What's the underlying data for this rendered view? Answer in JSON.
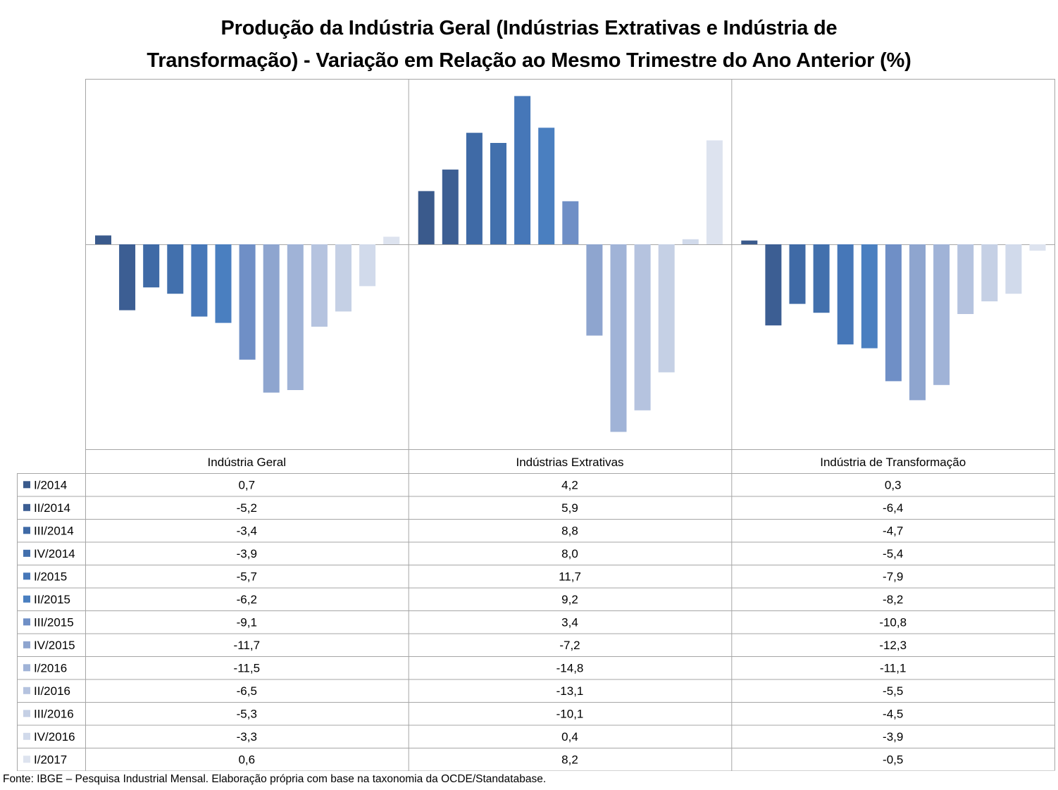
{
  "chart_data": {
    "type": "bar",
    "title_line1": "Produção da Indústria Geral (Indústrias Extrativas e Indústria de",
    "title_line2_bold": "Transformação)",
    "title_line2_rest": "- Variação em Relação ao Mesmo Trimestre do Ano Anterior (%)",
    "categories": [
      "Indústria Geral",
      "Indústrias Extrativas",
      "Indústria de Transformação"
    ],
    "ylim": [
      -15.5,
      12.5
    ],
    "grid": false,
    "legend": "data-table",
    "series": [
      {
        "name": "I/2014",
        "color": "#3a5a8c",
        "values": [
          0.7,
          4.2,
          0.3
        ]
      },
      {
        "name": "II/2014",
        "color": "#3c5e93",
        "values": [
          -5.2,
          5.9,
          -6.4
        ]
      },
      {
        "name": "III/2014",
        "color": "#3f6aa6",
        "values": [
          -3.4,
          8.8,
          -4.7
        ]
      },
      {
        "name": "IV/2014",
        "color": "#4270ad",
        "values": [
          -3.9,
          8.0,
          -5.4
        ]
      },
      {
        "name": "I/2015",
        "color": "#4677b8",
        "values": [
          -5.7,
          11.7,
          -7.9
        ]
      },
      {
        "name": "II/2015",
        "color": "#4a7fc0",
        "values": [
          -6.2,
          9.2,
          -8.2
        ]
      },
      {
        "name": "III/2015",
        "color": "#6f8fc6",
        "values": [
          -9.1,
          3.4,
          -10.8
        ]
      },
      {
        "name": "IV/2015",
        "color": "#8ea5cf",
        "values": [
          -11.7,
          -7.2,
          -12.3
        ]
      },
      {
        "name": "I/2016",
        "color": "#a0b3d7",
        "values": [
          -11.5,
          -14.8,
          -11.1
        ]
      },
      {
        "name": "II/2016",
        "color": "#b5c3df",
        "values": [
          -6.5,
          -13.1,
          -5.5
        ]
      },
      {
        "name": "III/2016",
        "color": "#c5d0e5",
        "values": [
          -5.3,
          -10.1,
          -4.5
        ]
      },
      {
        "name": "IV/2016",
        "color": "#d1daeb",
        "values": [
          -3.3,
          0.4,
          -3.9
        ]
      },
      {
        "name": "I/2017",
        "color": "#dde3ef",
        "values": [
          0.6,
          8.2,
          -0.5
        ]
      }
    ],
    "table_values": [
      [
        "0,7",
        "4,2",
        "0,3"
      ],
      [
        "-5,2",
        "5,9",
        "-6,4"
      ],
      [
        "-3,4",
        "8,8",
        "-4,7"
      ],
      [
        "-3,9",
        "8,0",
        "-5,4"
      ],
      [
        "-5,7",
        "11,7",
        "-7,9"
      ],
      [
        "-6,2",
        "9,2",
        "-8,2"
      ],
      [
        "-9,1",
        "3,4",
        "-10,8"
      ],
      [
        "-11,7",
        "-7,2",
        "-12,3"
      ],
      [
        "-11,5",
        "-14,8",
        "-11,1"
      ],
      [
        "-6,5",
        "-13,1",
        "-5,5"
      ],
      [
        "-5,3",
        "-10,1",
        "-4,5"
      ],
      [
        "-3,3",
        "0,4",
        "-3,9"
      ],
      [
        "0,6",
        "8,2",
        "-0,5"
      ]
    ]
  },
  "source_note": "Fonte: IBGE – Pesquisa Industrial Mensal. Elaboração própria com base na taxonomia da OCDE/Standatabase."
}
